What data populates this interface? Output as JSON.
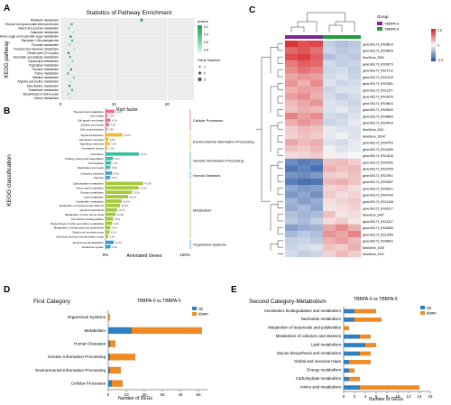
{
  "figure": {
    "panel_labels": [
      "A",
      "B",
      "C",
      "D",
      "E"
    ]
  },
  "chart_data": [
    {
      "panel": "A",
      "type": "scatter",
      "title": "Statistics of Pathway Enrichment",
      "xlabel": "Rich factor",
      "ylabel": "KEGG pathway",
      "xticks": [
        "0",
        "10",
        "20"
      ],
      "xlim": [
        0,
        25
      ],
      "pathways": [
        "Riboflavin metabolism",
        "Pentose and glucuronate interconversions",
        "Starch and sucrose metabolism",
        "Galactose metabolism",
        "Amino sugar and nucleotide sugar metabolism",
        "Glycolysis / Gluconeogenesis",
        "Pyruvate metabolism",
        "Fructose and mannose metabolism",
        "Citrate cycle (TCA cycle)",
        "Ascorbate and aldarate metabolism",
        "Glycerolipid metabolism",
        "Tryptophan metabolism",
        "Tyrosine metabolism",
        "Purine metabolism",
        "Histidine metabolism",
        "Arginine and proline metabolism",
        "beta-Alanine metabolism",
        "Glutathione metabolism",
        "Biosynthesis of amino acids",
        "Carbon metabolism"
      ],
      "rich_factor": [
        15.2,
        2.1,
        1.6,
        2.4,
        1.9,
        2.2,
        1.7,
        2.6,
        1.5,
        1.8,
        2.3,
        1.6,
        2.0,
        1.4,
        2.5,
        1.9,
        1.7,
        2.2,
        1.5,
        1.8
      ],
      "legend_title": "qvalue",
      "legend_ticks": [
        "0.2",
        "0.4",
        "0.6",
        "0.8"
      ],
      "size_legend_title": "Gene Number",
      "size_legend_values": [
        "1",
        "2",
        "3"
      ]
    },
    {
      "panel": "B",
      "type": "bar",
      "orientation": "horizontal",
      "xlabel": "Annotated Genes",
      "ylabel": "KEGG classification",
      "xticks": [
        "0%",
        "100%"
      ],
      "groups": [
        {
          "name": "Cellular Processes",
          "color": "#ee6b9b",
          "labels": [
            "Transport and catabolism",
            "Cell motility",
            "Cell growth and death",
            "Cellular community",
            "Cell communication"
          ],
          "values": [
            11.3,
            2.3,
            6.1,
            4.5,
            1.8
          ]
        },
        {
          "name": "Environmental Information Processing",
          "color": "#f3b638",
          "labels": [
            "Signal transduction",
            "Membrane transport",
            "Signaling molecules",
            "Translation factors"
          ],
          "values": [
            21.5,
            3.8,
            5.2,
            2.1
          ]
        },
        {
          "name": "Genetic Information Processing",
          "color": "#3cbfa1",
          "labels": [
            "Translation",
            "Folding, sorting and degradation",
            "Transcription",
            "Replication and repair"
          ],
          "values": [
            42.2,
            9.4,
            7.1,
            6.0
          ]
        },
        {
          "name": "Human Diseases",
          "color": "#4aa3dc",
          "labels": [
            "Infectious diseases",
            "Cancers"
          ],
          "values": [
            8.3,
            5.9
          ]
        },
        {
          "name": "Metabolism",
          "color": "#a5c93a",
          "labels": [
            "Carbohydrate metabolism",
            "Amino acid metabolism",
            "Energy metabolism",
            "Lipid metabolism",
            "Nucleotide metabolism",
            "Metabolism of cofactors and vitamins",
            "Glycan biosynthesis",
            "Metabolism of other amino acids",
            "Xenobiotics biodegradation",
            "Biosynthesis of other secondary metabolites",
            "Metabolism of terpenoids and polyketides",
            "Global and overview maps",
            "Chemical structure transformation maps"
          ],
          "values": [
            47.5,
            41.8,
            33.2,
            28.6,
            20.4,
            18.3,
            14.7,
            12.9,
            9.8,
            8.4,
            6.2,
            5.1,
            3.6
          ]
        },
        {
          "name": "Organismal Systems",
          "color": "#2aa2d8",
          "labels": [
            "Environmental adaptation",
            "Endocrine system"
          ],
          "values": [
            10.4,
            6.3
          ]
        }
      ]
    },
    {
      "panel": "C",
      "type": "heatmap",
      "legend_title": "Group",
      "groups": [
        {
          "name": "TBBPA-0",
          "color": "#7b2a8f"
        },
        {
          "name": "TBBPA-5",
          "color": "#1f9e3a"
        }
      ],
      "scale_ticks": [
        "2.5",
        "0",
        "-2.5"
      ],
      "rows": [
        "gene-BEL73_RS08814",
        "gene-BEL73_RS05515",
        "NewGene_3050",
        "gene-BEL73_RS09273",
        "gene-BEL73_RS14712",
        "gene-BEL73_RS10419",
        "gene-BEL73_RS07681",
        "gene-BEL73_RS11377",
        "gene-BEL73_RS03029",
        "gene-BEL73_RS06624",
        "gene-BEL73_RS09040",
        "gene-BEL73_RS08853",
        "gene-BEL73_RS04519",
        "NewGene_4021",
        "NewGene_32047",
        "gene-BEL73_RS09753",
        "gene-BEL73_RS11805",
        "gene-BEL73_RS12618",
        "gene-BEL73_RS01462",
        "gene-BEL73_RS02295",
        "gene-BEL73_RS10901",
        "gene-BEL73_RS03357",
        "gene-BEL73_RS08101",
        "gene-BEL73_RS07443",
        "gene-BEL73_RS11248",
        "gene-BEL73_RS00317",
        "NewGene_2497",
        "gene-BEL73_RS15117",
        "gene-BEL73_RS04860",
        "gene-BEL73_RS12905",
        "gene-BEL73_RS06022",
        "NewGene_1935",
        "NewGene_5101"
      ],
      "values": [
        [
          2.2,
          1.9,
          2.0,
          -0.6,
          -0.8,
          -0.7
        ],
        [
          1.6,
          1.8,
          1.5,
          -0.5,
          -0.7,
          -0.6
        ],
        [
          1.9,
          2.1,
          1.7,
          -0.8,
          -0.6,
          -0.7
        ],
        [
          1.4,
          1.7,
          1.6,
          -0.4,
          -0.6,
          -0.5
        ],
        [
          1.2,
          1.5,
          1.3,
          -0.5,
          -0.4,
          -0.6
        ],
        [
          0.9,
          1.1,
          1.0,
          -0.4,
          -0.3,
          -0.5
        ],
        [
          1.1,
          0.8,
          1.2,
          -0.3,
          -0.5,
          -0.4
        ],
        [
          0.8,
          1.0,
          0.9,
          -0.5,
          -0.3,
          -0.3
        ],
        [
          1.0,
          1.2,
          0.8,
          -0.4,
          -0.6,
          -0.4
        ],
        [
          0.7,
          0.9,
          1.1,
          -0.3,
          -0.4,
          -0.5
        ],
        [
          0.6,
          0.8,
          0.7,
          -0.3,
          -0.2,
          -0.4
        ],
        [
          1.3,
          1.0,
          1.2,
          -0.4,
          -0.5,
          -0.3
        ],
        [
          0.8,
          1.1,
          0.9,
          -0.5,
          -0.4,
          -0.2
        ],
        [
          0.5,
          0.7,
          0.6,
          -0.2,
          -0.3,
          -0.3
        ],
        [
          0.4,
          0.6,
          0.5,
          -0.2,
          -0.1,
          -0.3
        ],
        [
          0.9,
          0.7,
          0.8,
          -0.3,
          -0.4,
          -0.2
        ],
        [
          0.6,
          0.5,
          0.7,
          -0.1,
          -0.3,
          -0.2
        ],
        [
          0.3,
          0.4,
          0.5,
          0.1,
          -0.1,
          0.0
        ],
        [
          -1.6,
          -1.8,
          -1.7,
          0.6,
          0.7,
          0.5
        ],
        [
          -1.9,
          -1.7,
          -2.0,
          0.8,
          0.6,
          0.7
        ],
        [
          -1.5,
          -1.6,
          -1.4,
          0.5,
          0.4,
          0.6
        ],
        [
          -1.8,
          -2.0,
          -1.9,
          0.7,
          0.8,
          0.6
        ],
        [
          -1.2,
          -1.4,
          -1.3,
          0.4,
          0.5,
          0.3
        ],
        [
          -1.4,
          -1.2,
          -1.5,
          0.5,
          0.3,
          0.4
        ],
        [
          -1.0,
          -1.3,
          -1.1,
          0.3,
          0.4,
          0.5
        ],
        [
          -1.1,
          -0.9,
          -1.2,
          0.2,
          0.3,
          0.4
        ],
        [
          -0.8,
          -1.0,
          -0.9,
          0.6,
          0.2,
          0.3
        ],
        [
          -0.7,
          -0.9,
          -0.6,
          0.3,
          0.5,
          0.2
        ],
        [
          -1.3,
          -1.1,
          -1.0,
          0.9,
          1.2,
          0.8
        ],
        [
          -0.9,
          -0.7,
          -0.8,
          1.1,
          0.9,
          1.3
        ],
        [
          -0.6,
          -0.5,
          -0.7,
          0.8,
          1.0,
          0.7
        ],
        [
          -0.5,
          -0.4,
          -0.3,
          0.6,
          0.5,
          0.8
        ],
        [
          -0.4,
          -0.6,
          -0.5,
          0.4,
          0.7,
          0.5
        ]
      ]
    },
    {
      "panel": "D",
      "type": "bar",
      "orientation": "horizontal",
      "stacked": true,
      "title": "First Category",
      "subtitle": "TBBPA-0 vs TBBPA-5",
      "xlabel": "Number of DEGs",
      "xticks": [
        0,
        10,
        20,
        30,
        40,
        50
      ],
      "xlim": [
        0,
        55
      ],
      "categories": [
        "Organismal Systems",
        "Metabolism",
        "Human Diseases",
        "Genetic Information Processing",
        "Environmental Information Processing",
        "Cellular Processes"
      ],
      "series": [
        {
          "name": "up",
          "color": "#2f7fc1",
          "values": [
            0,
            13,
            1,
            1,
            1,
            2
          ]
        },
        {
          "name": "down",
          "color": "#f08a24",
          "values": [
            1,
            39,
            3,
            14,
            6,
            6
          ]
        }
      ]
    },
    {
      "panel": "E",
      "type": "bar",
      "orientation": "horizontal",
      "stacked": true,
      "title": "Second Category-Metabolism",
      "subtitle": "TBBPA-0 vs TBBPA-5",
      "xlabel": "Number of DEGs",
      "xticks": [
        0,
        2,
        4,
        6,
        8,
        10,
        12,
        14,
        16
      ],
      "xlim": [
        0,
        16
      ],
      "categories": [
        "Xenobiotics biodegradation and metabolism",
        "Nucleotide metabolism",
        "Metabolism of terpenoids and polyketides",
        "Metabolism of cofactors and vitamins",
        "Lipid metabolism",
        "Glycan biosynthesis and metabolism",
        "Global and overview maps",
        "Energy metabolism",
        "Carbohydrate metabolism",
        "Amino acid metabolism"
      ],
      "series": [
        {
          "name": "up",
          "color": "#2f7fc1",
          "values": [
            2,
            2,
            0,
            3,
            4,
            3,
            1,
            1,
            1,
            3
          ]
        },
        {
          "name": "down",
          "color": "#f08a24",
          "values": [
            4,
            5,
            1,
            2,
            2,
            2,
            4,
            1,
            2,
            11
          ]
        }
      ]
    }
  ]
}
